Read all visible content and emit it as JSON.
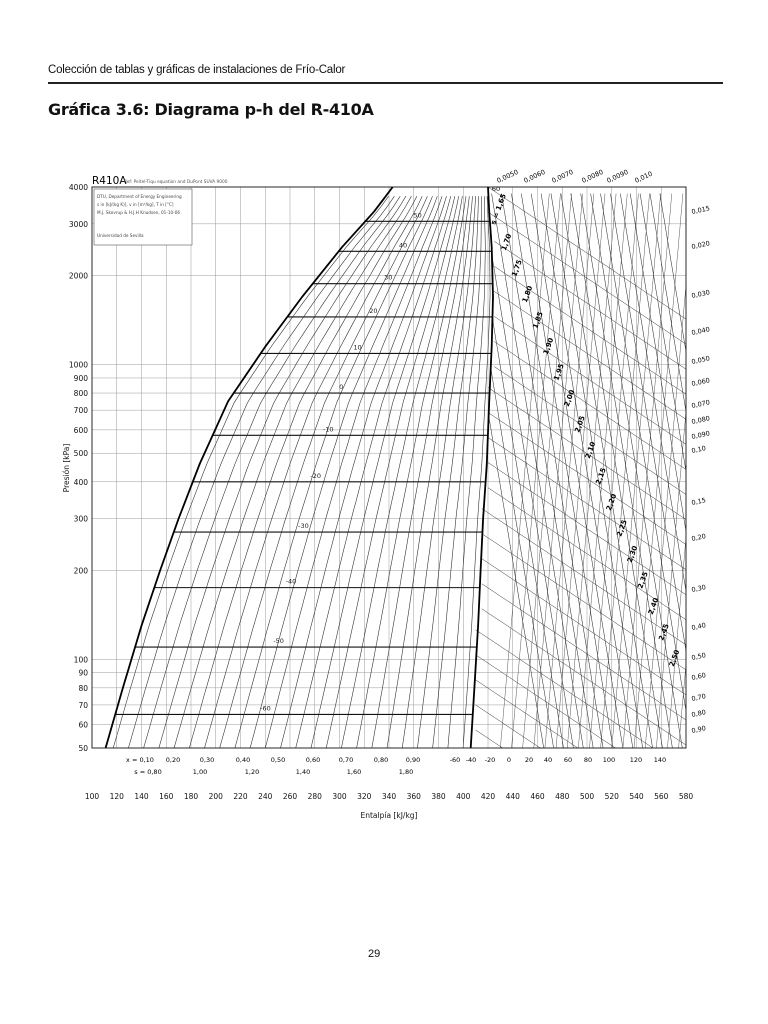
{
  "header": {
    "collection": "Colección de tablas y gráficas de instalaciones de Frío-Calor",
    "title": "Gráfica 3.6: Diagrama p-h del R-410A",
    "page_number": "29"
  },
  "chart_data": {
    "type": "line",
    "refrigerant": "R410A",
    "source_note": "Ref: Peitel-Tiqu equation and DuPont SUVA 9000",
    "info_box": [
      "DTU, Department of Energy Engineering",
      "s in [kJ/(kg K)], v in [m³/kg], T in [°C]",
      "M.J. Skovrup & H.J.H Knudsen, 01-10-06",
      "Universidad de Sevilla"
    ],
    "xlabel": "Entalpía [kJ/kg]",
    "ylabel": "Presión [kPa]",
    "x_scale": "linear",
    "y_scale": "log",
    "xlim": [
      100,
      580
    ],
    "ylim": [
      50,
      4000
    ],
    "x_ticks": [
      "100",
      "120",
      "140",
      "160",
      "180",
      "200",
      "220",
      "240",
      "260",
      "280",
      "300",
      "320",
      "340",
      "360",
      "380",
      "400",
      "420",
      "440",
      "460",
      "480",
      "500",
      "520",
      "540",
      "560",
      "580"
    ],
    "y_ticks": [
      {
        "value": 4000,
        "label": "4000"
      },
      {
        "value": 3000,
        "label": "3000"
      },
      {
        "value": 2000,
        "label": "2000"
      },
      {
        "value": 1000,
        "label": "1000"
      },
      {
        "value": 900,
        "label": "900"
      },
      {
        "value": 800,
        "label": "800"
      },
      {
        "value": 700,
        "label": "700"
      },
      {
        "value": 600,
        "label": "600"
      },
      {
        "value": 500,
        "label": "500"
      },
      {
        "value": 400,
        "label": "400"
      },
      {
        "value": 300,
        "label": "300"
      },
      {
        "value": 200,
        "label": "200"
      },
      {
        "value": 100,
        "label": "100"
      },
      {
        "value": 90,
        "label": "90"
      },
      {
        "value": 80,
        "label": "80"
      },
      {
        "value": 70,
        "label": "70"
      },
      {
        "value": 60,
        "label": "60"
      },
      {
        "value": 50,
        "label": "50"
      }
    ],
    "saturation_dome": {
      "liquid": [
        [
          111,
          50
        ],
        [
          125,
          80
        ],
        [
          140,
          130
        ],
        [
          155,
          200
        ],
        [
          170,
          300
        ],
        [
          187,
          460
        ],
        [
          210,
          750
        ],
        [
          240,
          1150
        ],
        [
          270,
          1700
        ],
        [
          302,
          2500
        ],
        [
          328,
          3300
        ],
        [
          343,
          4000
        ]
      ],
      "vapor": [
        [
          406,
          50
        ],
        [
          409,
          80
        ],
        [
          412,
          130
        ],
        [
          414,
          200
        ],
        [
          416,
          300
        ],
        [
          419,
          460
        ],
        [
          421,
          750
        ],
        [
          423,
          1150
        ],
        [
          424,
          1700
        ],
        [
          423,
          2500
        ],
        [
          421,
          3300
        ],
        [
          420,
          4000
        ]
      ]
    },
    "isotherms": [
      {
        "label": "50",
        "p": 3060
      },
      {
        "label": "40",
        "p": 2420
      },
      {
        "label": "30",
        "p": 1880
      },
      {
        "label": "20",
        "p": 1450
      },
      {
        "label": "10",
        "p": 1090
      },
      {
        "label": "0",
        "p": 800
      },
      {
        "label": "-10",
        "p": 575
      },
      {
        "label": "-20",
        "p": 400
      },
      {
        "label": "-30",
        "p": 270
      },
      {
        "label": "-40",
        "p": 175
      },
      {
        "label": "-50",
        "p": 110
      },
      {
        "label": "-60",
        "p": 65
      }
    ],
    "quality_labels": [
      "x = 0,10",
      "0,20",
      "0,30",
      "0,40",
      "0,50",
      "0,60",
      "0,70",
      "0,80",
      "0,90"
    ],
    "entropy_labels": [
      "s = 0,80",
      "1,00",
      "1,20",
      "1,40",
      "1,60",
      "1,80"
    ],
    "bottom_temp_labels": [
      "-60",
      "-40",
      "-20",
      "0",
      "20",
      "40",
      "60",
      "80",
      "100",
      "120",
      "140"
    ],
    "top_temp_label": "60",
    "volume_labels_top": [
      "0,0050",
      "0,0060",
      "0,0070",
      "0,0080",
      "0,0090",
      "0,010"
    ],
    "volume_labels_right": [
      "0,015",
      "0,020",
      "0,030",
      "0,040",
      "0,050",
      "0,060",
      "0,070",
      "0,080",
      "0,090",
      "0,10",
      "0,15",
      "0,20",
      "0,30",
      "0,40",
      "0,50",
      "0,60",
      "0,70",
      "0,80",
      "0,90"
    ],
    "entropy_labels_vapor": [
      "s = 1,65",
      "1,70",
      "1,75",
      "1,80",
      "1,85",
      "1,90",
      "1,95",
      "2,00",
      "2,05",
      "2,10",
      "2,15",
      "2,20",
      "2,25",
      "2,30",
      "2,35",
      "2,40",
      "2,45",
      "2,50"
    ],
    "grid": true,
    "legend": "none"
  }
}
